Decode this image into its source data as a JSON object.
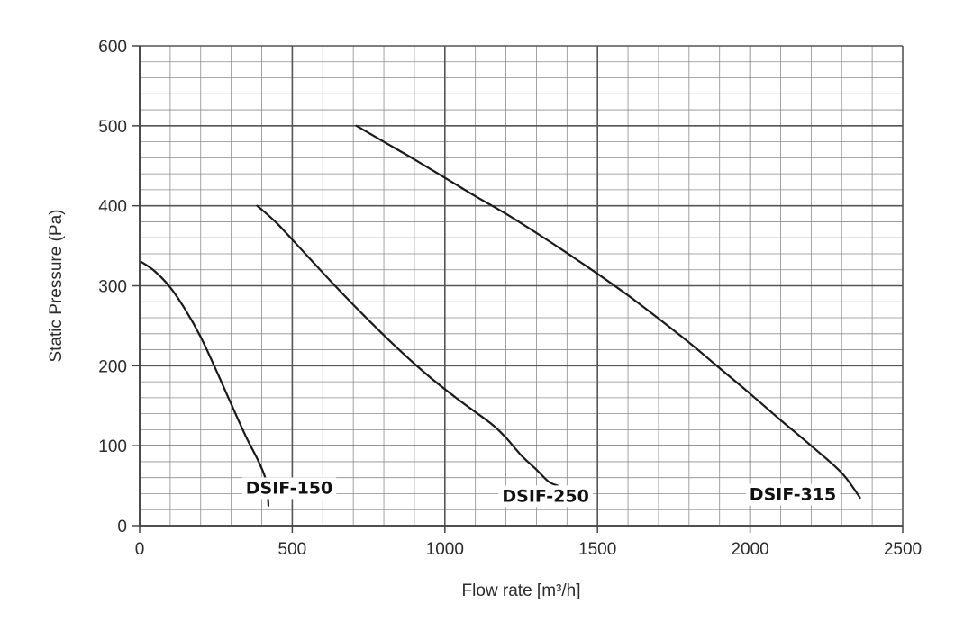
{
  "chart_data": {
    "type": "line",
    "xlabel": "Flow rate [m³/h]",
    "ylabel": "Static Pressure (Pa)",
    "xlim": [
      0,
      2500
    ],
    "ylim": [
      0,
      600
    ],
    "x_ticks": [
      "0",
      "500",
      "1000",
      "1500",
      "2000",
      "2500"
    ],
    "y_ticks": [
      "0",
      "100",
      "200",
      "300",
      "400",
      "500",
      "600"
    ],
    "grid": true,
    "grid_minor": {
      "x_step": 100,
      "y_step": 20
    },
    "grid_major": {
      "x_step": 500,
      "y_step": 100
    },
    "legend": "none",
    "colors": {
      "curve": "#1a1a1a",
      "grid": "#8c8c8c",
      "axis": "#444444",
      "text": "#2b2b2b"
    },
    "series": [
      {
        "name": "DSIF-150",
        "label_at": {
          "x": 490,
          "y": 40
        },
        "points": [
          [
            5,
            330
          ],
          [
            50,
            318
          ],
          [
            100,
            298
          ],
          [
            150,
            270
          ],
          [
            200,
            236
          ],
          [
            250,
            195
          ],
          [
            300,
            152
          ],
          [
            350,
            110
          ],
          [
            390,
            80
          ],
          [
            415,
            55
          ],
          [
            422,
            25
          ]
        ]
      },
      {
        "name": "DSIF-250",
        "label_at": {
          "x": 1330,
          "y": 30
        },
        "points": [
          [
            385,
            400
          ],
          [
            450,
            378
          ],
          [
            550,
            337
          ],
          [
            650,
            296
          ],
          [
            750,
            257
          ],
          [
            850,
            220
          ],
          [
            950,
            186
          ],
          [
            1050,
            156
          ],
          [
            1150,
            128
          ],
          [
            1200,
            110
          ],
          [
            1250,
            88
          ],
          [
            1300,
            70
          ],
          [
            1340,
            55
          ],
          [
            1370,
            50
          ]
        ]
      },
      {
        "name": "DSIF-315",
        "label_at": {
          "x": 2140,
          "y": 32
        },
        "points": [
          [
            710,
            500
          ],
          [
            800,
            480
          ],
          [
            900,
            458
          ],
          [
            1000,
            435
          ],
          [
            1100,
            412
          ],
          [
            1200,
            390
          ],
          [
            1300,
            366
          ],
          [
            1400,
            341
          ],
          [
            1500,
            315
          ],
          [
            1600,
            288
          ],
          [
            1700,
            259
          ],
          [
            1800,
            229
          ],
          [
            1900,
            197
          ],
          [
            2000,
            165
          ],
          [
            2100,
            132
          ],
          [
            2200,
            100
          ],
          [
            2300,
            66
          ],
          [
            2360,
            35
          ]
        ]
      }
    ]
  }
}
